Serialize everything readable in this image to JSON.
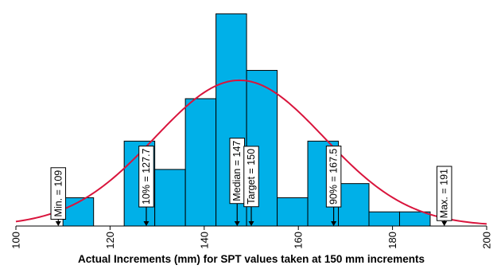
{
  "chart_data": {
    "type": "bar",
    "title": "",
    "xlabel": "Actual Increments (mm) for SPT values taken at 150 mm increments",
    "ylabel": "",
    "xlim": [
      100,
      200
    ],
    "bin_width": 6.5,
    "bins": [
      {
        "start": 110.0,
        "end": 116.5,
        "count": 2
      },
      {
        "start": 116.5,
        "end": 123.0,
        "count": 0
      },
      {
        "start": 123.0,
        "end": 129.5,
        "count": 6
      },
      {
        "start": 129.5,
        "end": 136.0,
        "count": 4
      },
      {
        "start": 136.0,
        "end": 142.5,
        "count": 9
      },
      {
        "start": 142.5,
        "end": 149.0,
        "count": 15
      },
      {
        "start": 149.0,
        "end": 155.5,
        "count": 11
      },
      {
        "start": 155.5,
        "end": 162.0,
        "count": 2
      },
      {
        "start": 162.0,
        "end": 168.5,
        "count": 6
      },
      {
        "start": 168.5,
        "end": 175.0,
        "count": 3
      },
      {
        "start": 175.0,
        "end": 181.5,
        "count": 1
      },
      {
        "start": 181.5,
        "end": 188.0,
        "count": 1
      }
    ],
    "ylim": [
      0,
      15.3
    ],
    "x_ticks": [
      100,
      120,
      140,
      160,
      180,
      200
    ],
    "x_tick_labels": [
      "100",
      "120",
      "140",
      "160",
      "180",
      "200"
    ],
    "curve": {
      "type": "normal",
      "mean": 147.5,
      "sd": 18,
      "peak_count": 10.3
    },
    "markers": [
      {
        "value": 109,
        "label": "Min. = 109",
        "label_center_count": 2.3
      },
      {
        "value": 127.7,
        "label": "10% = 127.7",
        "label_center_count": 3.5
      },
      {
        "value": 147,
        "label": "Median = 147",
        "label_center_count": 3.9
      },
      {
        "value": 150,
        "label": "Target = 150",
        "label_center_count": 3.5
      },
      {
        "value": 167.5,
        "label": "90% = 167.5",
        "label_center_count": 3.5
      },
      {
        "value": 191,
        "label": "Max. = 191",
        "label_center_count": 2.3
      }
    ],
    "colors": {
      "bar_fill": "#00b0e8",
      "bar_stroke": "#000000",
      "curve": "#d9143c",
      "axis": "#000000"
    },
    "grid": false,
    "legend": "none"
  }
}
